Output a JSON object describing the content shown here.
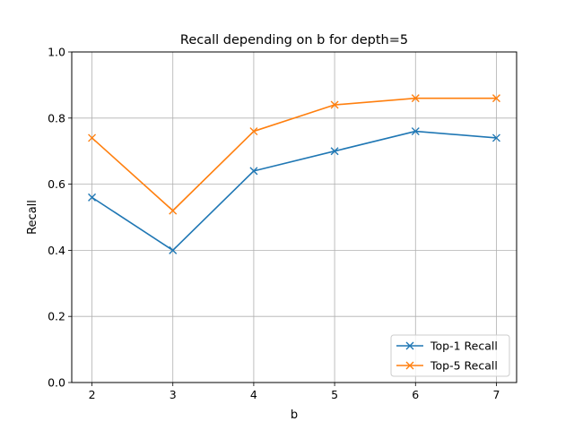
{
  "chart_data": {
    "type": "line",
    "title": "Recall depending on b for depth=5",
    "xlabel": "b",
    "ylabel": "Recall",
    "x": [
      2,
      3,
      4,
      5,
      6,
      7
    ],
    "xlim": [
      1.75,
      7.25
    ],
    "ylim": [
      0.0,
      1.0
    ],
    "xticks": [
      "2",
      "3",
      "4",
      "5",
      "6",
      "7"
    ],
    "yticks": [
      "0.0",
      "0.2",
      "0.4",
      "0.6",
      "0.8",
      "1.0"
    ],
    "grid": true,
    "legend_position": "lower-right",
    "marker": "x",
    "series": [
      {
        "name": "Top-1 Recall",
        "color": "#1f77b4",
        "values": [
          0.56,
          0.4,
          0.64,
          0.7,
          0.76,
          0.74
        ]
      },
      {
        "name": "Top-5 Recall",
        "color": "#ff7f0e",
        "values": [
          0.74,
          0.52,
          0.76,
          0.84,
          0.86,
          0.86
        ]
      }
    ]
  }
}
